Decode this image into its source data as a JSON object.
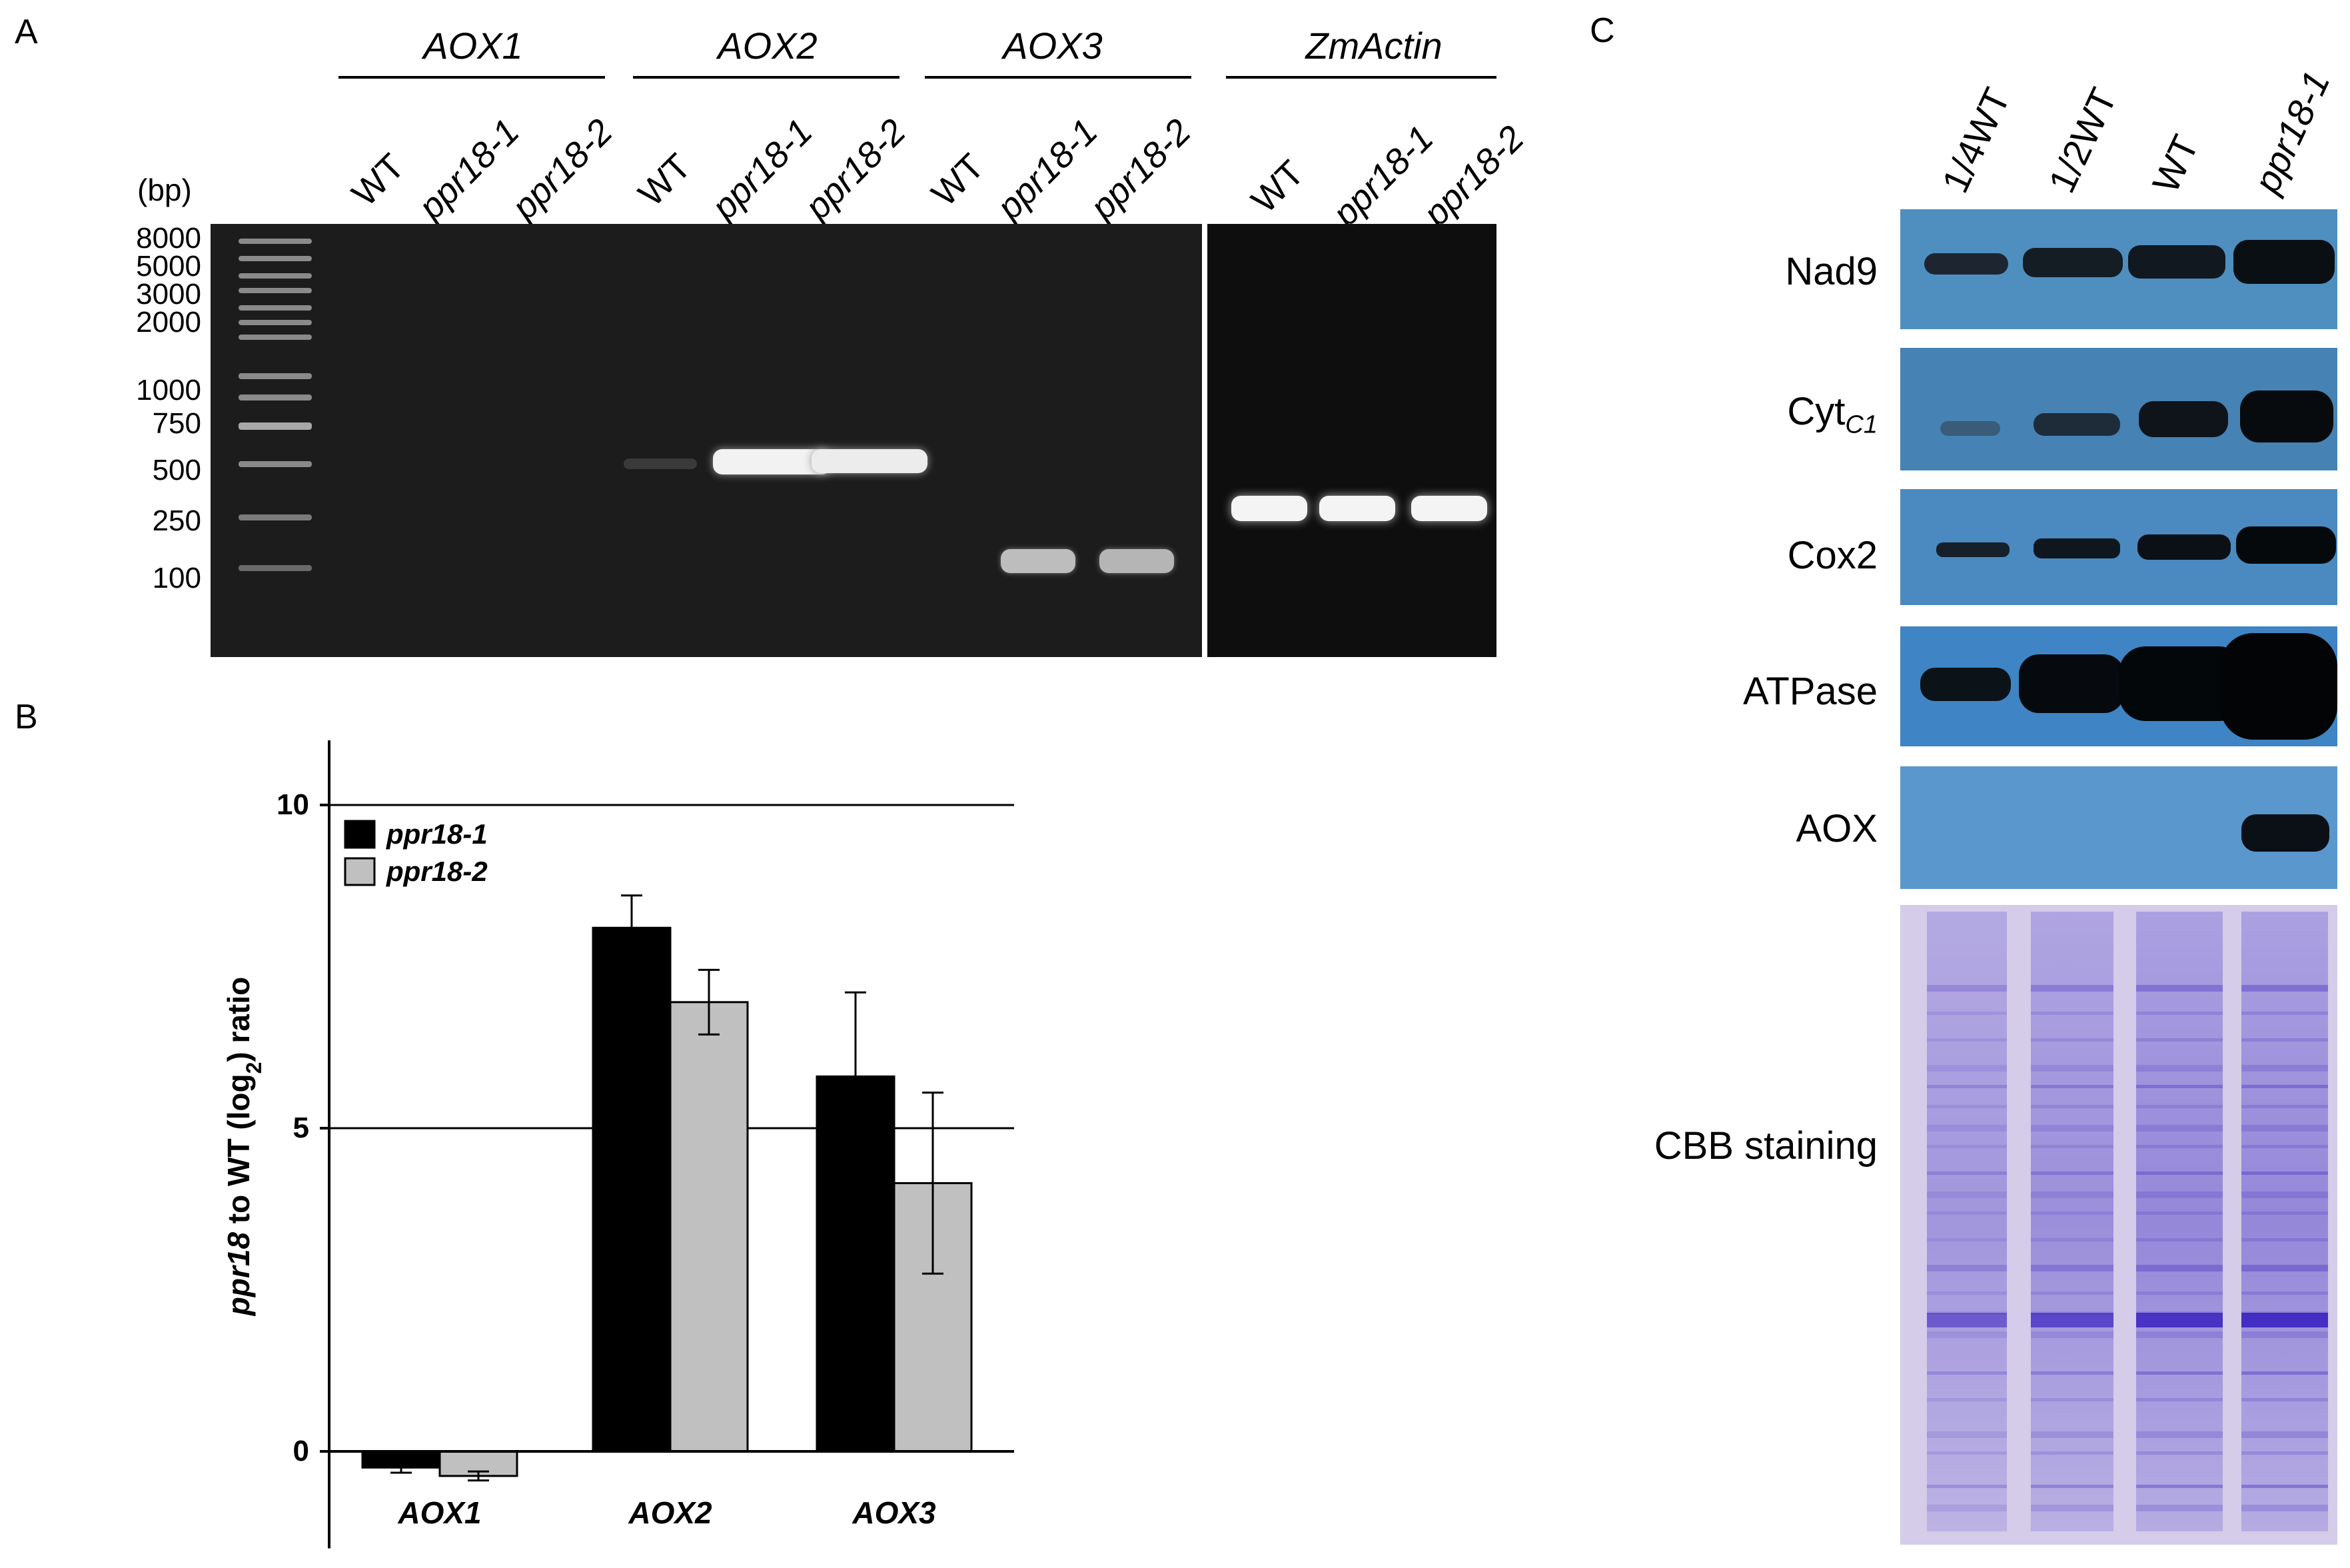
{
  "panels": {
    "a": "A",
    "b": "B",
    "c": "C"
  },
  "panelA": {
    "bp_unit": "(bp)",
    "genes": [
      "AOX1",
      "AOX2",
      "AOX3",
      "ZmActin"
    ],
    "lanes": [
      "WT",
      "ppr18-1",
      "ppr18-2",
      "WT",
      "ppr18-1",
      "ppr18-2",
      "WT",
      "ppr18-1",
      "ppr18-2",
      "WT",
      "ppr18-1",
      "ppr18-2"
    ],
    "ladder": [
      "8000",
      "5000",
      "3000",
      "2000",
      "1000",
      "750",
      "500",
      "250",
      "100"
    ]
  },
  "panelC": {
    "lanes": [
      "1/4WT",
      "1/2WT",
      "WT",
      "ppr18-1"
    ],
    "blots": [
      "Nad9",
      "Cyt",
      "Cox2",
      "ATPase",
      "AOX"
    ],
    "cyt_sub": "C1",
    "cbb": "CBB staining"
  },
  "chart_data": {
    "type": "bar",
    "title": "",
    "xlabel": "",
    "ylabel_parts": [
      "ppr18",
      " to WT (log",
      "2",
      ") ratio"
    ],
    "categories": [
      "AOX1",
      "AOX2",
      "AOX3"
    ],
    "series": [
      {
        "name": "ppr18-1",
        "values": [
          -0.25,
          8.1,
          5.8
        ],
        "errors": [
          0.08,
          0.5,
          1.3
        ],
        "color": "#000000"
      },
      {
        "name": "ppr18-2",
        "values": [
          -0.38,
          6.95,
          4.15
        ],
        "errors": [
          0.07,
          0.5,
          1.4
        ],
        "color": "#c0c0c0"
      }
    ],
    "yticks": [
      "0",
      "5",
      "10"
    ],
    "ylim": [
      -1.5,
      11
    ],
    "gridlines": [
      5,
      10
    ],
    "legend": "top-left"
  }
}
